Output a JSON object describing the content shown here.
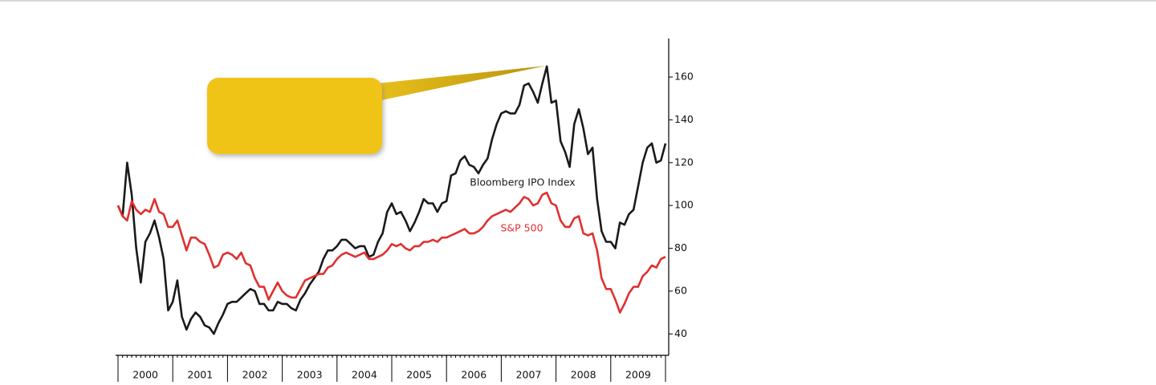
{
  "chart_data": {
    "type": "line",
    "categories": [
      "2000",
      null,
      null,
      null,
      null,
      null,
      null,
      null,
      null,
      null,
      null,
      null,
      "2001",
      null,
      null,
      null,
      null,
      null,
      null,
      null,
      null,
      null,
      null,
      null,
      "2002",
      null,
      null,
      null,
      null,
      null,
      null,
      null,
      null,
      null,
      null,
      null,
      "2003",
      null,
      null,
      null,
      null,
      null,
      null,
      null,
      null,
      null,
      null,
      null,
      "2004",
      null,
      null,
      null,
      null,
      null,
      null,
      null,
      null,
      null,
      null,
      null,
      "2005",
      null,
      null,
      null,
      null,
      null,
      null,
      null,
      null,
      null,
      null,
      null,
      "2006",
      null,
      null,
      null,
      null,
      null,
      null,
      null,
      null,
      null,
      null,
      null,
      "2007",
      null,
      null,
      null,
      null,
      null,
      null,
      null,
      null,
      null,
      null,
      null,
      "2008",
      null,
      null,
      null,
      null,
      null,
      null,
      null,
      null,
      null,
      null,
      null,
      "2009",
      null,
      null,
      null,
      null,
      null,
      null,
      null,
      null,
      null,
      null,
      null,
      null
    ],
    "series": [
      {
        "name": "Bloomberg IPO Index",
        "color": "#1a1a1a",
        "values": [
          100,
          95,
          120,
          105,
          80,
          64,
          83,
          87,
          93,
          85,
          75,
          51,
          55,
          65,
          48,
          42,
          47,
          50,
          48,
          44,
          43,
          40,
          45,
          49,
          54,
          55,
          55,
          57,
          59,
          61,
          60,
          54,
          54,
          51,
          51,
          55,
          54,
          54,
          52,
          51,
          56,
          59,
          63,
          66,
          69,
          75,
          79,
          79,
          81,
          84,
          84,
          82,
          80,
          81,
          81,
          76,
          77,
          83,
          87,
          97,
          101,
          96,
          97,
          93,
          88,
          92,
          97,
          103,
          101,
          101,
          97,
          101,
          102,
          114,
          115,
          121,
          123,
          119,
          118,
          115,
          119,
          122,
          131,
          138,
          143,
          144,
          143,
          143,
          147,
          156,
          157,
          153,
          148,
          157,
          165,
          148,
          149,
          130,
          125,
          118,
          138,
          145,
          136,
          124,
          127,
          103,
          88,
          83,
          83,
          80,
          92,
          91,
          96,
          98,
          109,
          120,
          127,
          129,
          120,
          121,
          129
        ]
      },
      {
        "name": "S&P 500",
        "color": "#e03030",
        "values": [
          100,
          95,
          93,
          102,
          98,
          96,
          98,
          97,
          103,
          97,
          96,
          90,
          90,
          93,
          86,
          79,
          85,
          85,
          83,
          82,
          77,
          71,
          72,
          77,
          78,
          77,
          75,
          78,
          73,
          72,
          66,
          62,
          62,
          56,
          60,
          64,
          60,
          58,
          57,
          57,
          61,
          65,
          66,
          67,
          68,
          68,
          71,
          72,
          75,
          77,
          78,
          77,
          76,
          77,
          78,
          75,
          75,
          76,
          77,
          79,
          82,
          81,
          82,
          80,
          79,
          81,
          81,
          83,
          83,
          84,
          83,
          85,
          85,
          86,
          87,
          88,
          89,
          87,
          87,
          88,
          90,
          93,
          95,
          96,
          97,
          98,
          97,
          99,
          101,
          104,
          103,
          100,
          101,
          105,
          106,
          101,
          100,
          93,
          90,
          90,
          94,
          95,
          87,
          86,
          87,
          79,
          66,
          61,
          61,
          56,
          50,
          54,
          59,
          62,
          62,
          67,
          69,
          72,
          71,
          75,
          76
        ]
      }
    ],
    "ylim": [
      30,
      178
    ],
    "yticks": [
      40,
      60,
      80,
      100,
      120,
      140,
      160
    ],
    "grid": false
  }
}
